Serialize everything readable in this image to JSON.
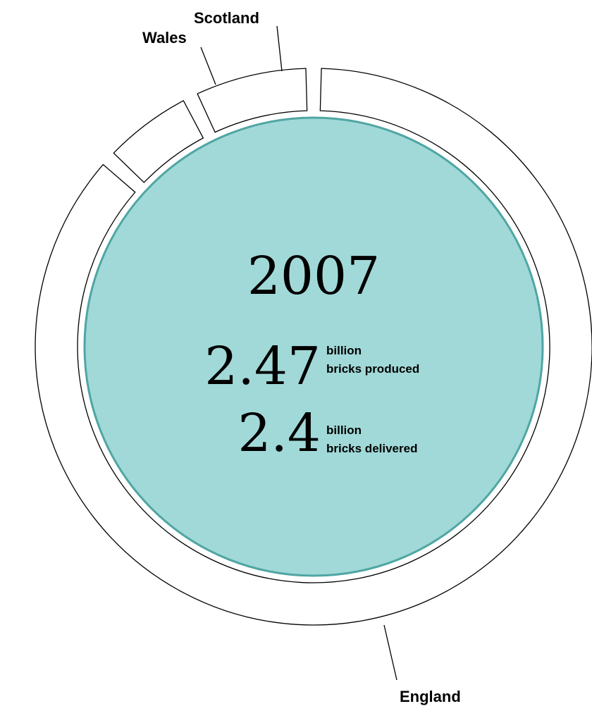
{
  "chart_data": {
    "type": "pie",
    "segments": [
      {
        "name": "England",
        "value": 0.868
      },
      {
        "name": "Wales",
        "value": 0.059
      },
      {
        "name": "Scotland",
        "value": 0.073
      }
    ],
    "center": {
      "year": "2007",
      "produced": {
        "value": "2.47",
        "unit_line1": "billion",
        "unit_line2": "bricks produced"
      },
      "delivered": {
        "value": "2.4",
        "unit_line1": "billion",
        "unit_line2": "bricks delivered"
      }
    },
    "colors": {
      "inner_fill": "#a1d9d8",
      "inner_stroke": "#4fa6a3",
      "ring_stroke": "#000000"
    }
  }
}
